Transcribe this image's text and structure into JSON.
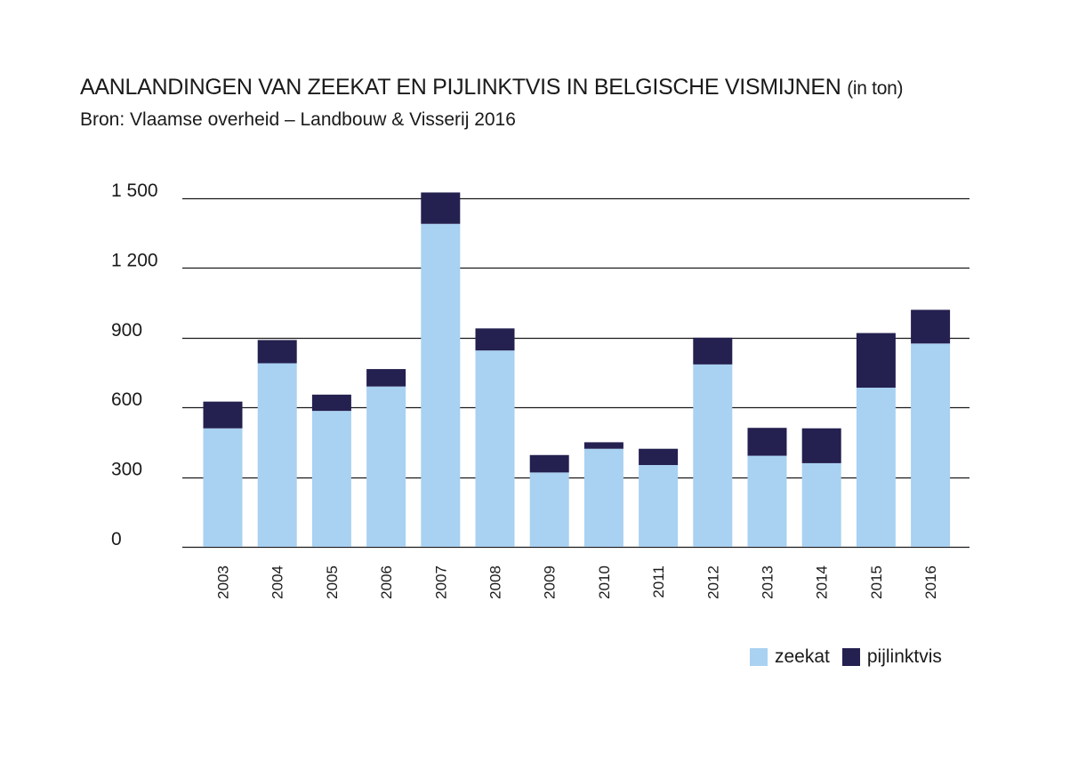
{
  "header": {
    "title": "AANLANDINGEN VAN ZEEKAT EN PIJLINKTVIS IN BELGISCHE VISMIJNEN",
    "title_unit": "(in ton)",
    "subtitle": "Bron: Vlaamse overheid – Landbouw & Visserij 2016"
  },
  "colors": {
    "zeekat": "#a9d1f1",
    "pijlinktvis": "#24204f",
    "grid": "#1a1a1a"
  },
  "chart_data": {
    "type": "bar",
    "stacked": true,
    "categories": [
      "2003",
      "2004",
      "2005",
      "2006",
      "2007",
      "2008",
      "2009",
      "2010",
      "2011",
      "2012",
      "2013",
      "2014",
      "2015",
      "2016"
    ],
    "series": [
      {
        "name": "zeekat",
        "values": [
          510,
          790,
          585,
          690,
          1390,
          845,
          320,
          422,
          352,
          785,
          392,
          360,
          685,
          875
        ]
      },
      {
        "name": "pijlinktvis",
        "values": [
          115,
          100,
          70,
          75,
          135,
          95,
          75,
          28,
          70,
          115,
          120,
          150,
          235,
          145
        ]
      }
    ],
    "ylim": [
      0,
      1500
    ],
    "yticks": [
      0,
      300,
      600,
      900,
      1200,
      1500
    ],
    "ytick_labels": [
      "0",
      "300",
      "600",
      "900",
      "1 200",
      "1 500"
    ],
    "grid": true,
    "legend_position": "bottom-right",
    "title": "AANLANDINGEN VAN ZEEKAT EN PIJLINKTVIS IN BELGISCHE VISMIJNEN (in ton)"
  }
}
